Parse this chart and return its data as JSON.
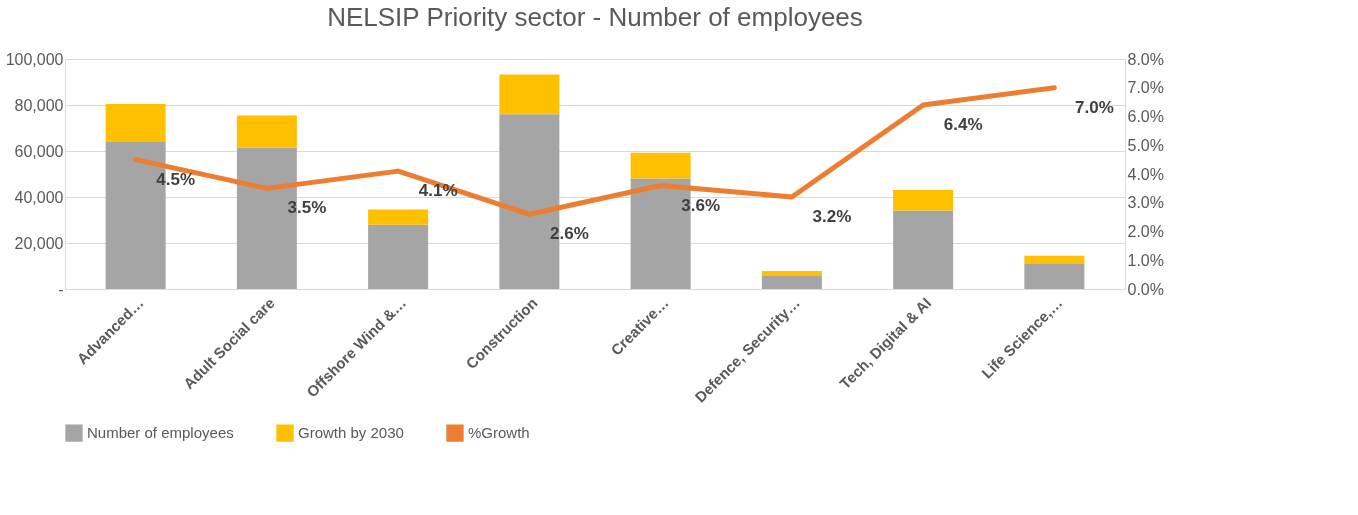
{
  "chart_data": {
    "type": "bar",
    "title": "NELSIP Priority sector - Number of employees",
    "categories": [
      "Advanced…",
      "Adult Social care",
      "Offshore Wind &…",
      "Construction",
      "Creative…",
      "Defence, Security…",
      "Tech, Digital & AI",
      "Life Science,…"
    ],
    "stacked": true,
    "series": [
      {
        "name": "Number of employees",
        "color": "#a5a5a5",
        "values": [
          64200,
          61500,
          27900,
          76000,
          48000,
          5600,
          34100,
          11200
        ]
      },
      {
        "name": "Growth by 2030",
        "color": "#ffc000",
        "values": [
          16200,
          13900,
          6700,
          17300,
          11200,
          2200,
          8900,
          3300
        ]
      },
      {
        "name": "%Growth",
        "type": "line",
        "axis": "y2",
        "color": "#ed7d31",
        "values": [
          4.5,
          3.5,
          4.1,
          2.6,
          3.6,
          3.2,
          6.4,
          7.0
        ],
        "value_labels": [
          "4.5%",
          "3.5%",
          "4.1%",
          "2.6%",
          "3.6%",
          "3.2%",
          "6.4%",
          "7.0%"
        ]
      }
    ],
    "ylim": [
      0,
      100000
    ],
    "yticks": [
      {
        "value": 0,
        "label": "-"
      },
      {
        "value": 20000,
        "label": "20,000"
      },
      {
        "value": 40000,
        "label": "40,000"
      },
      {
        "value": 60000,
        "label": "60,000"
      },
      {
        "value": 80000,
        "label": "80,000"
      },
      {
        "value": 100000,
        "label": "100,000"
      }
    ],
    "y2lim": [
      0,
      8
    ],
    "y2ticks": [
      {
        "value": 0,
        "label": "0.0%"
      },
      {
        "value": 1,
        "label": "1.0%"
      },
      {
        "value": 2,
        "label": "2.0%"
      },
      {
        "value": 3,
        "label": "3.0%"
      },
      {
        "value": 4,
        "label": "4.0%"
      },
      {
        "value": 5,
        "label": "5.0%"
      },
      {
        "value": 6,
        "label": "6.0%"
      },
      {
        "value": 7,
        "label": "7.0%"
      },
      {
        "value": 8,
        "label": "8.0%"
      }
    ],
    "grid": "y",
    "legend": "bottom"
  }
}
